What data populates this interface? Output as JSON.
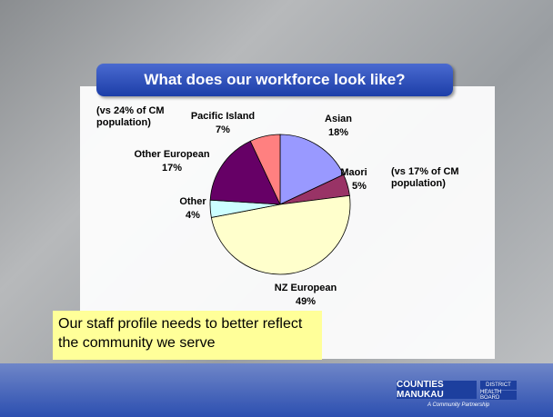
{
  "chart_data": {
    "type": "pie",
    "title": "What does our workforce look like?",
    "categories": [
      "Asian",
      "Maori",
      "NZ European",
      "Other",
      "Other European",
      "Pacific Island"
    ],
    "values": [
      18,
      5,
      49,
      4,
      17,
      7
    ],
    "value_labels": [
      "18%",
      "5%",
      "49%",
      "4%",
      "17%",
      "7%"
    ],
    "colors": [
      "#9999ff",
      "#993366",
      "#ffffcc",
      "#ccffff",
      "#660066",
      "#ff8080"
    ],
    "annotations": [
      "(vs 24% of CM population)",
      "(vs 17% of CM population)"
    ]
  },
  "slide": {
    "callout": "Our staff profile needs to better reflect the community we serve",
    "logo": {
      "name": "COUNTIES MANUKAU",
      "district": "DISTRICT",
      "board": "HEALTH BOARD",
      "tagline": "A Community Partnership"
    }
  }
}
